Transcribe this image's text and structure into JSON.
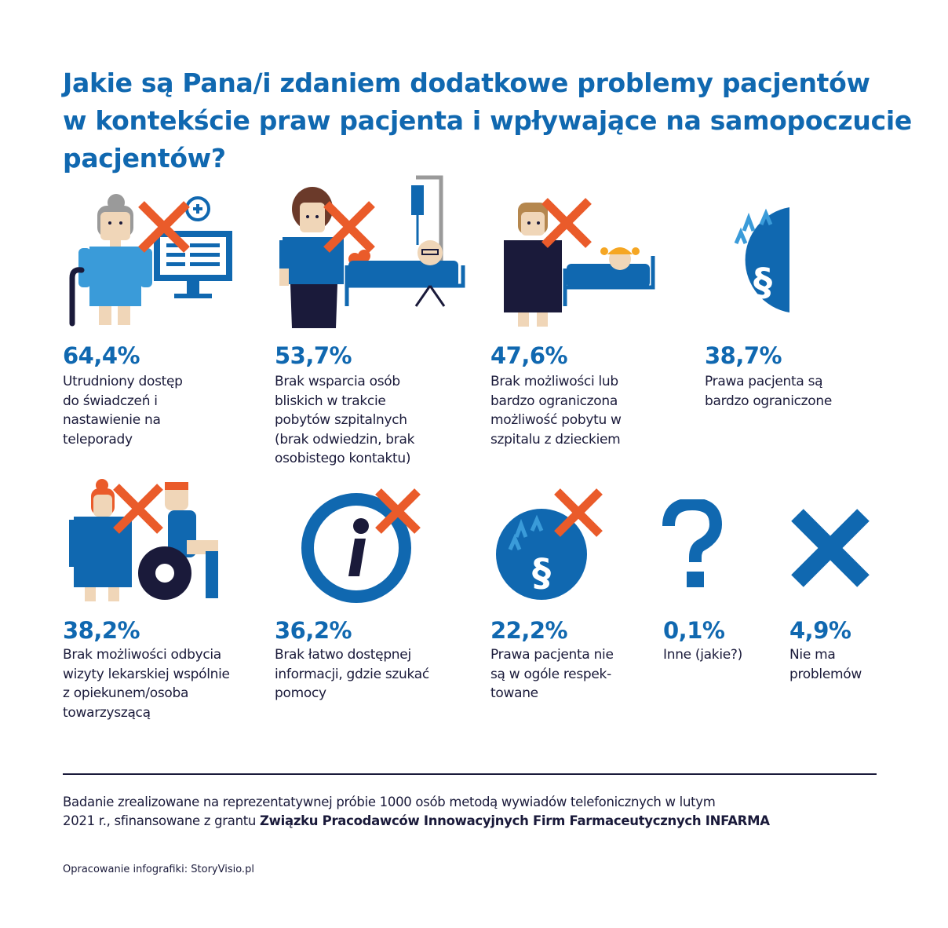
{
  "title": {
    "line1": "Jakie są Pana/i zdaniem dodatkowe problemy pacjentów",
    "line2": "w kontekście praw pacjenta i wpływające na samopoczucie",
    "line3": "pacjentów?"
  },
  "items": [
    {
      "percent": "64,4%",
      "lines": [
        "Utrudniony dostęp",
        "do świadczeń i",
        "nastawienie na",
        "teleporady"
      ],
      "icon": "elderly-woman-computer-icon"
    },
    {
      "percent": "53,7%",
      "lines": [
        "Brak wsparcia osób",
        "bliskich w trakcie",
        "pobytów szpitalnych",
        "(brak odwiedzin, brak",
        "osobistego kontaktu)"
      ],
      "icon": "hospital-visit-icon"
    },
    {
      "percent": "47,6%",
      "lines": [
        "Brak możliwości lub",
        "bardzo ograniczona",
        "możliwość pobytu w",
        "szpitalu z dzieckiem"
      ],
      "icon": "parent-child-hospital-icon"
    },
    {
      "percent": "38,7%",
      "lines": [
        "Prawa pacjenta są",
        "bardzo ograniczone"
      ],
      "icon": "restricted-law-icon"
    },
    {
      "percent": "38,2%",
      "lines": [
        "Brak możliwości odbycia",
        "wizyty lekarskiej wspólnie",
        "z opiekunem/osoba",
        "towarzyszącą"
      ],
      "icon": "wheelchair-caregiver-icon"
    },
    {
      "percent": "36,2%",
      "lines": [
        "Brak łatwo dostępnej",
        "informacji, gdzie szukać",
        "pomocy"
      ],
      "icon": "information-icon"
    },
    {
      "percent": "22,2%",
      "lines": [
        "Prawa pacjenta nie",
        "są w ogóle respek-",
        "towane"
      ],
      "icon": "law-crossed-icon"
    },
    {
      "percent": "0,1%",
      "lines": [
        "Inne (jakie?)"
      ],
      "icon": "question-mark-icon"
    },
    {
      "percent": "4,9%",
      "lines": [
        "Nie ma",
        "problemów"
      ],
      "icon": "blue-x-icon"
    }
  ],
  "source": {
    "line1": "Badanie zrealizowane na reprezentatywnej próbie 1000 osób metodą wywiadów telefonicznych w lutym",
    "line2_prefix": "2021 r., sfinansowane z grantu ",
    "line2_bold": "Związku Pracodawców Innowacyjnych Firm Farmaceutycznych INFARMA"
  },
  "credit": "Opracowanie infografiki: StoryVisio.pl",
  "colors": {
    "blue": "#1068b0",
    "navy": "#1a1a3a",
    "orange": "#ea5b2a",
    "light_blue": "#3a9bd9",
    "skin": "#f0d6b8"
  }
}
